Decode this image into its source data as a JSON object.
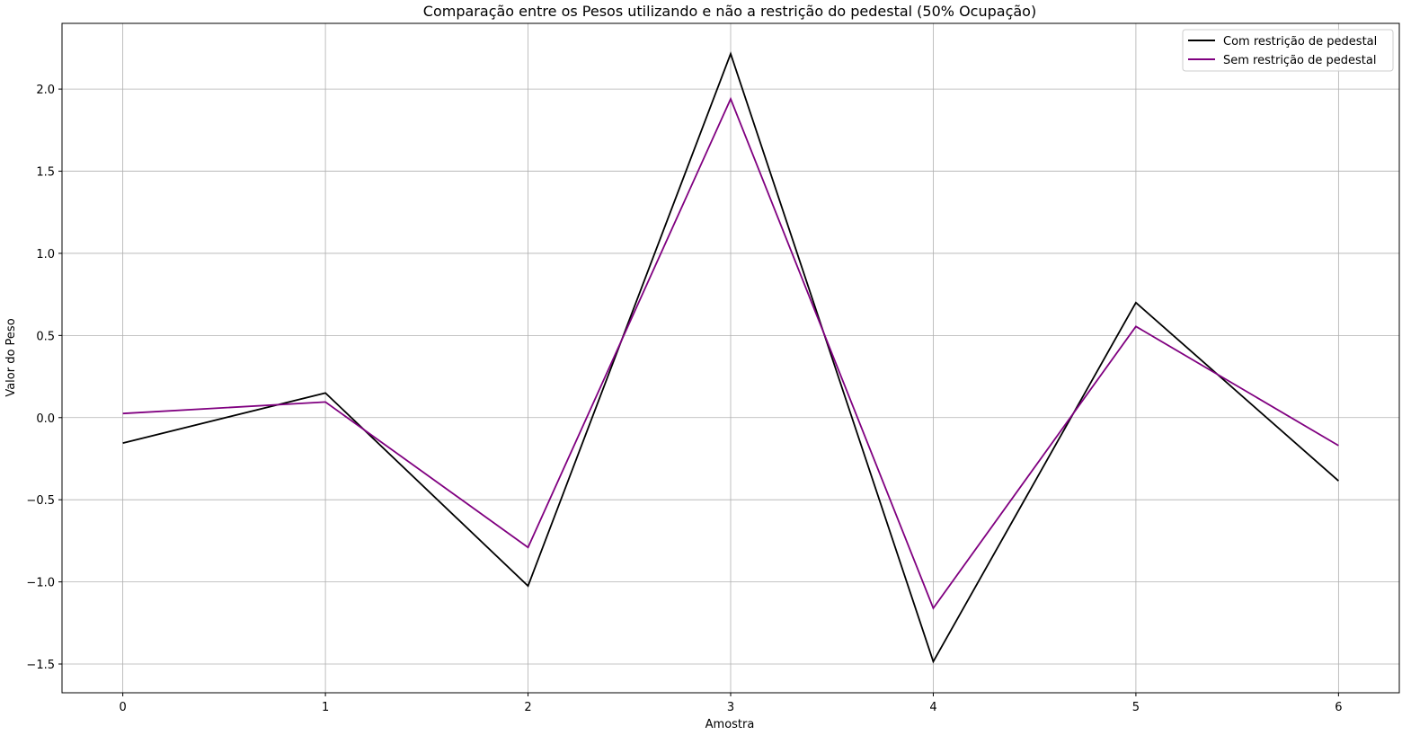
{
  "chart_data": {
    "type": "line",
    "title": "Comparação entre os Pesos utilizando e não a restrição do pedestal (50% Ocupação)",
    "xlabel": "Amostra",
    "ylabel": "Valor do Peso",
    "x": [
      0,
      1,
      2,
      3,
      4,
      5,
      6
    ],
    "xlim": [
      -0.3,
      6.3
    ],
    "ylim": [
      -1.675,
      2.4
    ],
    "xticks": [
      0,
      1,
      2,
      3,
      4,
      5,
      6
    ],
    "xtick_labels": [
      "0",
      "1",
      "2",
      "3",
      "4",
      "5",
      "6"
    ],
    "yticks": [
      -1.5,
      -1.0,
      -0.5,
      0.0,
      0.5,
      1.0,
      1.5,
      2.0
    ],
    "ytick_labels": [
      "−1.5",
      "−1.0",
      "−0.5",
      "0.0",
      "0.5",
      "1.0",
      "1.5",
      "2.0"
    ],
    "grid": true,
    "legend_position": "top-right",
    "series": [
      {
        "name": "Com restrição de pedestal",
        "color": "#000000",
        "values": [
          -0.155,
          0.15,
          -1.025,
          2.215,
          -1.485,
          0.7,
          -0.385
        ]
      },
      {
        "name": "Sem restrição de pedestal",
        "color": "#800080",
        "values": [
          0.025,
          0.095,
          -0.79,
          1.94,
          -1.16,
          0.555,
          -0.17
        ]
      }
    ]
  }
}
